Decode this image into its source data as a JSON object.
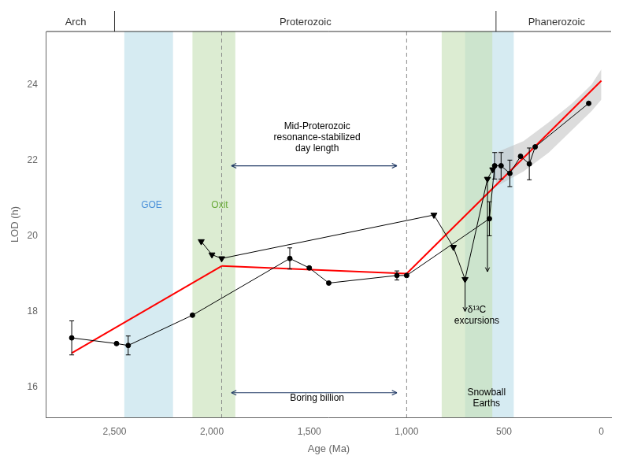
{
  "chart_data": {
    "type": "line",
    "xlabel": "Age (Ma)",
    "ylabel": "LOD (h)",
    "xlim": [
      2850,
      -50
    ],
    "ylim": [
      15.2,
      25.4
    ],
    "xticks": [
      {
        "value": 2500,
        "label": "2,500"
      },
      {
        "value": 2000,
        "label": "2,000"
      },
      {
        "value": 1500,
        "label": "1,500"
      },
      {
        "value": 1000,
        "label": "1,000"
      },
      500,
      0
    ],
    "yticks": [
      16,
      18,
      20,
      22,
      24
    ],
    "grid": false,
    "eras": {
      "boundaries": [
        2500,
        541
      ],
      "labels": [
        {
          "text": "Arch",
          "x": 2700
        },
        {
          "text": "Proterozoic",
          "x": 1520
        },
        {
          "text": "Phanerozoic",
          "x": 230
        }
      ]
    },
    "bands": [
      {
        "x0": 2450,
        "x1": 2200,
        "color": "#add8e6"
      },
      {
        "x0": 700,
        "x1": 450,
        "color": "#add8e6"
      },
      {
        "x0": 2100,
        "x1": 1880,
        "color": "#c5e0b4"
      },
      {
        "x0": 820,
        "x1": 560,
        "color": "#c5e0b4"
      }
    ],
    "dashed_vlines": [
      1950,
      1000
    ],
    "confidence_band": {
      "color": "#c0c0c0",
      "x": [
        541,
        400,
        270,
        150,
        50,
        0
      ],
      "ylow": [
        21.3,
        21.7,
        22.2,
        22.8,
        23.3,
        23.6
      ],
      "yhigh": [
        22.2,
        22.5,
        23.0,
        23.5,
        24.0,
        24.4
      ]
    },
    "trend_segments": {
      "color": "red",
      "segments": [
        {
          "x": [
            2720,
            1950
          ],
          "y": [
            16.9,
            19.2
          ]
        },
        {
          "x": [
            1950,
            1000
          ],
          "y": [
            19.2,
            19.0
          ]
        },
        {
          "x": [
            1000,
            0
          ],
          "y": [
            19.0,
            24.1
          ]
        }
      ]
    },
    "circle_series": {
      "color": "black",
      "marker": "circle",
      "x": [
        2720,
        2490,
        2430,
        2100,
        1600,
        1500,
        1400,
        1050,
        1000,
        575,
        548,
        515,
        470,
        415,
        370,
        340,
        65
      ],
      "values": [
        17.3,
        17.15,
        17.1,
        17.9,
        19.4,
        19.15,
        18.75,
        18.95,
        18.95,
        20.45,
        21.85,
        21.85,
        21.65,
        22.1,
        21.9,
        22.35,
        23.5
      ],
      "yerr": [
        0.45,
        0.0,
        0.25,
        0.0,
        0.28,
        0.0,
        0.0,
        0.12,
        0.0,
        0.45,
        0.35,
        0.35,
        0.35,
        0.0,
        0.42,
        0.0,
        0.0
      ]
    },
    "triangle_series": {
      "color": "black",
      "marker": "triangle_down",
      "x": [
        2055,
        2000,
        1950,
        860,
        760,
        700,
        585,
        558
      ],
      "values": [
        19.85,
        19.5,
        19.4,
        20.55,
        19.7,
        18.85,
        21.5,
        21.75
      ],
      "yerr_down": [
        0.0,
        0.0,
        0.0,
        0.0,
        0.0,
        0.85,
        2.45,
        0.0
      ]
    },
    "annotations": [
      {
        "text": "GOE",
        "x": 2310,
        "y": 20.8,
        "color": "#4a90d9"
      },
      {
        "text": "Oxit",
        "x": 1960,
        "y": 20.8,
        "color": "#6aaa3a"
      },
      {
        "text": "Mid-Proterozoic\nresonance-stabilized\nday length",
        "x": 1460,
        "y": 22.6,
        "color": "black"
      },
      {
        "text": "Boring billion",
        "x": 1460,
        "y": 15.7,
        "color": "black"
      },
      {
        "text": "δ¹³C\nexcursions",
        "x": 640,
        "y": 17.9,
        "color": "black"
      },
      {
        "text": "Snowball\nEarths",
        "x": 590,
        "y": 15.7,
        "color": "black"
      }
    ],
    "double_arrows": [
      {
        "x1": 1900,
        "x2": 1050,
        "y": 21.85,
        "color": "#1f3864"
      },
      {
        "x1": 1900,
        "x2": 1050,
        "y": 15.85,
        "color": "#1f3864"
      }
    ]
  }
}
